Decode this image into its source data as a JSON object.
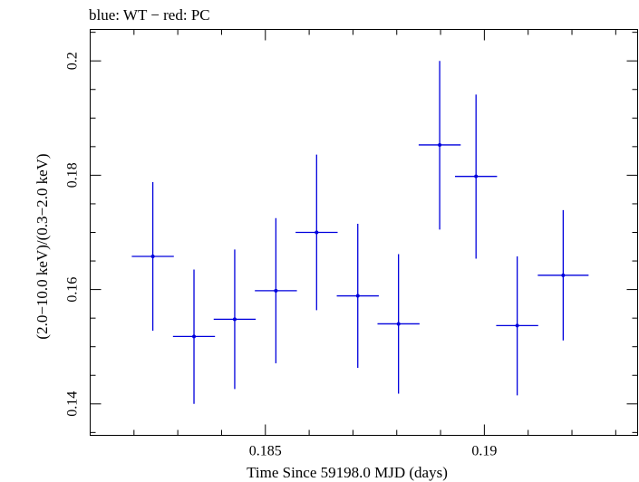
{
  "chart_data": {
    "type": "scatter",
    "title": "blue: WT − red: PC",
    "xlabel": "Time Since 59198.0 MJD (days)",
    "ylabel": "(2.0−10.0 keV)/(0.3−2.0 keV)",
    "xlim": [
      0.181,
      0.1935
    ],
    "ylim": [
      0.1345,
      0.2055
    ],
    "x_ticks": [
      {
        "value": 0.185,
        "label": "0.185"
      },
      {
        "value": 0.19,
        "label": "0.19"
      }
    ],
    "y_ticks": [
      {
        "value": 0.14,
        "label": "0.14"
      },
      {
        "value": 0.16,
        "label": "0.16"
      },
      {
        "value": 0.18,
        "label": "0.18"
      },
      {
        "value": 0.2,
        "label": "0.2"
      }
    ],
    "x_minor_step": 0.001,
    "y_minor_step": 0.005,
    "grid": false,
    "series": [
      {
        "color": "#0000dd",
        "points": [
          {
            "x": 0.18243,
            "xerr": 0.00048,
            "y": 0.1658,
            "yerr_lo": 0.013,
            "yerr_hi": 0.013
          },
          {
            "x": 0.18337,
            "xerr": 0.00048,
            "y": 0.1518,
            "yerr_lo": 0.0118,
            "yerr_hi": 0.0117
          },
          {
            "x": 0.1843,
            "xerr": 0.00048,
            "y": 0.1548,
            "yerr_lo": 0.0122,
            "yerr_hi": 0.0122
          },
          {
            "x": 0.18524,
            "xerr": 0.00048,
            "y": 0.1598,
            "yerr_lo": 0.0127,
            "yerr_hi": 0.0127
          },
          {
            "x": 0.18617,
            "xerr": 0.00048,
            "y": 0.17,
            "yerr_lo": 0.0136,
            "yerr_hi": 0.0136
          },
          {
            "x": 0.18711,
            "xerr": 0.00048,
            "y": 0.1589,
            "yerr_lo": 0.0126,
            "yerr_hi": 0.0126
          },
          {
            "x": 0.18804,
            "xerr": 0.00048,
            "y": 0.154,
            "yerr_lo": 0.0122,
            "yerr_hi": 0.0122
          },
          {
            "x": 0.18898,
            "xerr": 0.00048,
            "y": 0.1853,
            "yerr_lo": 0.0148,
            "yerr_hi": 0.0147
          },
          {
            "x": 0.18981,
            "xerr": 0.00048,
            "y": 0.1798,
            "yerr_lo": 0.0144,
            "yerr_hi": 0.0143
          },
          {
            "x": 0.19075,
            "xerr": 0.00048,
            "y": 0.1537,
            "yerr_lo": 0.0122,
            "yerr_hi": 0.0121
          },
          {
            "x": 0.1918,
            "xerr": 0.00058,
            "y": 0.1625,
            "yerr_lo": 0.0114,
            "yerr_hi": 0.0114
          }
        ]
      }
    ]
  }
}
